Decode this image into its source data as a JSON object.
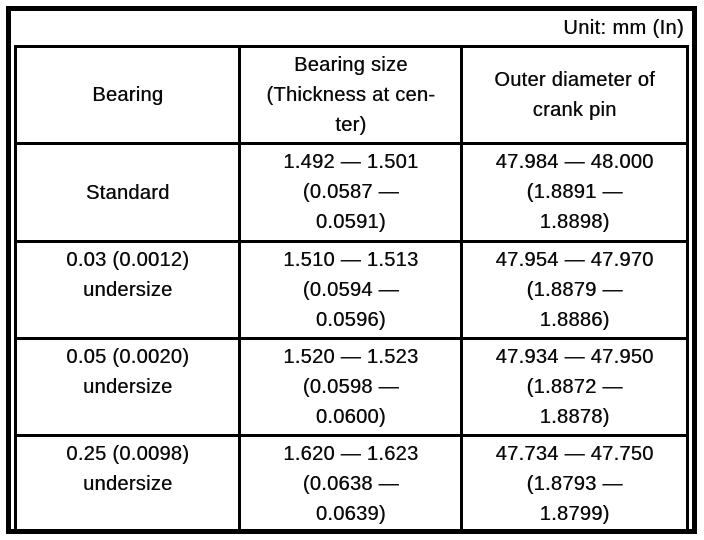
{
  "unit_label": "Unit: mm (In)",
  "colors": {
    "ink": "#0a0a0a",
    "paper": "#ffffff",
    "border": "#000000"
  },
  "table": {
    "headers": {
      "bearing": "Bearing",
      "size": "Bearing size\n(Thickness at cen-\nter)",
      "diameter": "Outer diameter of\ncrank pin"
    },
    "rows": [
      {
        "bearing": "Standard",
        "size": "1.492 — 1.501\n(0.0587 —\n0.0591)",
        "diameter": "47.984 — 48.000\n(1.8891 —\n1.8898)"
      },
      {
        "bearing": "0.03 (0.0012)\nundersize",
        "size": "1.510 — 1.513\n(0.0594 —\n0.0596)",
        "diameter": "47.954 — 47.970\n(1.8879 —\n1.8886)"
      },
      {
        "bearing": "0.05 (0.0020)\nundersize",
        "size": "1.520 — 1.523\n(0.0598 —\n0.0600)",
        "diameter": "47.934 — 47.950\n(1.8872 —\n1.8878)"
      },
      {
        "bearing": "0.25 (0.0098)\nundersize",
        "size": "1.620 — 1.623\n(0.0638 —\n0.0639)",
        "diameter": "47.734 — 47.750\n(1.8793 —\n1.8799)"
      }
    ]
  }
}
